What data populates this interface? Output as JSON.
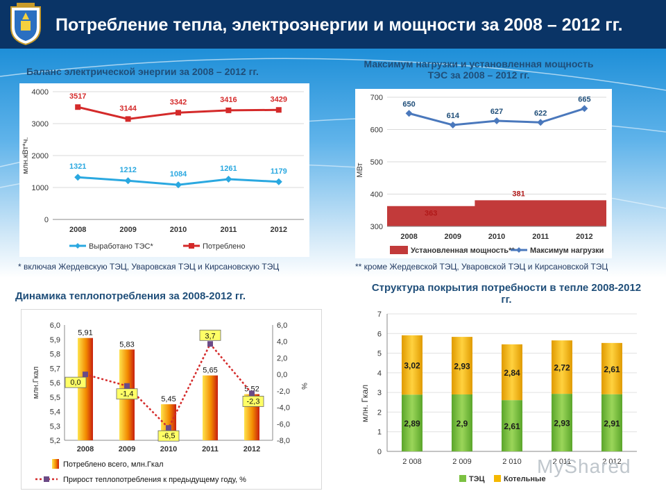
{
  "header": {
    "title": "Потребление тепла, электроэнергии и мощности за 2008 – 2012 гг."
  },
  "colors": {
    "header_bg": "#0a3466",
    "red": "#d42a2a",
    "blue": "#2aa8e0",
    "steel": "#4a78bc",
    "brick": "#c23a3a",
    "green": "#7cc142",
    "yellow": "#f5b800"
  },
  "chart_data": [
    {
      "type": "line",
      "title": "Баланс электрической энергии за 2008 – 2012 гг.",
      "ylabel": "млн.кВт*ч.",
      "categories": [
        "2008",
        "2009",
        "2010",
        "2011",
        "2012"
      ],
      "ylim": [
        0,
        4000
      ],
      "yticks": [
        "0",
        "1000",
        "2000",
        "3000",
        "4000"
      ],
      "series": [
        {
          "name": "Выработано ТЭС*",
          "values": [
            1321,
            1212,
            1084,
            1261,
            1179
          ],
          "labels": [
            "1321",
            "1212",
            "1084",
            "1261",
            "1179"
          ]
        },
        {
          "name": "Потреблено",
          "values": [
            3517,
            3144,
            3342,
            3416,
            3429
          ],
          "labels": [
            "3517",
            "3144",
            "3342",
            "3416",
            "3429"
          ]
        }
      ],
      "legend": "bottom",
      "footnote": "* включая Жердевскую ТЭЦ, Уваровская ТЭЦ и Кирсановскую ТЭЦ"
    },
    {
      "type": "line",
      "title": "Максимум нагрузки и установленная мощность ТЭС за 2008 – 2012 гг.",
      "ylabel": "МВт",
      "categories": [
        "2008",
        "2009",
        "2010",
        "2011",
        "2012"
      ],
      "ylim": [
        300,
        700
      ],
      "yticks": [
        "300",
        "400",
        "500",
        "600",
        "700"
      ],
      "series": [
        {
          "name": "Установленная мощность**",
          "type": "area",
          "values": [
            363,
            363,
            381,
            381,
            381
          ],
          "labels": [
            "363",
            "381"
          ]
        },
        {
          "name": "Максимум нагрузки",
          "values": [
            650,
            614,
            627,
            622,
            665
          ],
          "labels": [
            "650",
            "614",
            "627",
            "622",
            "665"
          ]
        }
      ],
      "legend": "bottom",
      "footnote": "** кроме Жердевской ТЭЦ, Уваровской ТЭЦ и Кирсановской ТЭЦ"
    },
    {
      "type": "bar",
      "title": "Динамика теплопотребления за 2008-2012 гг.",
      "ylabel": "млн.Гкал",
      "y2label": "%",
      "categories": [
        "2008",
        "2009",
        "2010",
        "2011",
        "2012"
      ],
      "ylim": [
        5.2,
        6.0
      ],
      "yticks": [
        "5,2",
        "5,3",
        "5,4",
        "5,5",
        "5,6",
        "5,7",
        "5,8",
        "5,9",
        "6,0"
      ],
      "y2lim": [
        -8,
        6
      ],
      "y2ticks": [
        "-8,0",
        "-6,0",
        "-4,0",
        "-2,0",
        "0,0",
        "2,0",
        "4,0",
        "6,0"
      ],
      "series": [
        {
          "name": "Потреблено всего, млн.Гкал",
          "values": [
            5.91,
            5.83,
            5.45,
            5.65,
            5.52
          ],
          "labels": [
            "5,91",
            "5,83",
            "5,45",
            "5,65",
            "5,52"
          ]
        },
        {
          "name": "Прирост теплопотребления к предыдущему году, %",
          "type": "line",
          "values": [
            0.0,
            -1.4,
            -6.5,
            3.7,
            -2.3
          ],
          "labels": [
            "0,0",
            "-1,4",
            "-6,5",
            "3,7",
            "-2,3"
          ]
        }
      ],
      "legend": "bottom"
    },
    {
      "type": "bar",
      "stacked": true,
      "title": "Структура покрытия потребности в тепле 2008-2012 гг.",
      "ylabel": "млн. Гкал",
      "categories": [
        "2 008",
        "2 009",
        "2 010",
        "2 011",
        "2 012"
      ],
      "ylim": [
        0,
        7
      ],
      "yticks": [
        "0",
        "1",
        "2",
        "3",
        "4",
        "5",
        "6",
        "7"
      ],
      "series": [
        {
          "name": "ТЭЦ",
          "values": [
            2.89,
            2.9,
            2.61,
            2.93,
            2.91
          ],
          "labels": [
            "2,89",
            "2,9",
            "2,61",
            "2,93",
            "2,91"
          ]
        },
        {
          "name": "Котельные",
          "values": [
            3.02,
            2.93,
            2.84,
            2.72,
            2.61
          ],
          "labels": [
            "3,02",
            "2,93",
            "2,84",
            "2,72",
            "2,61"
          ]
        }
      ],
      "legend": "bottom"
    }
  ],
  "watermark": "MyShared"
}
